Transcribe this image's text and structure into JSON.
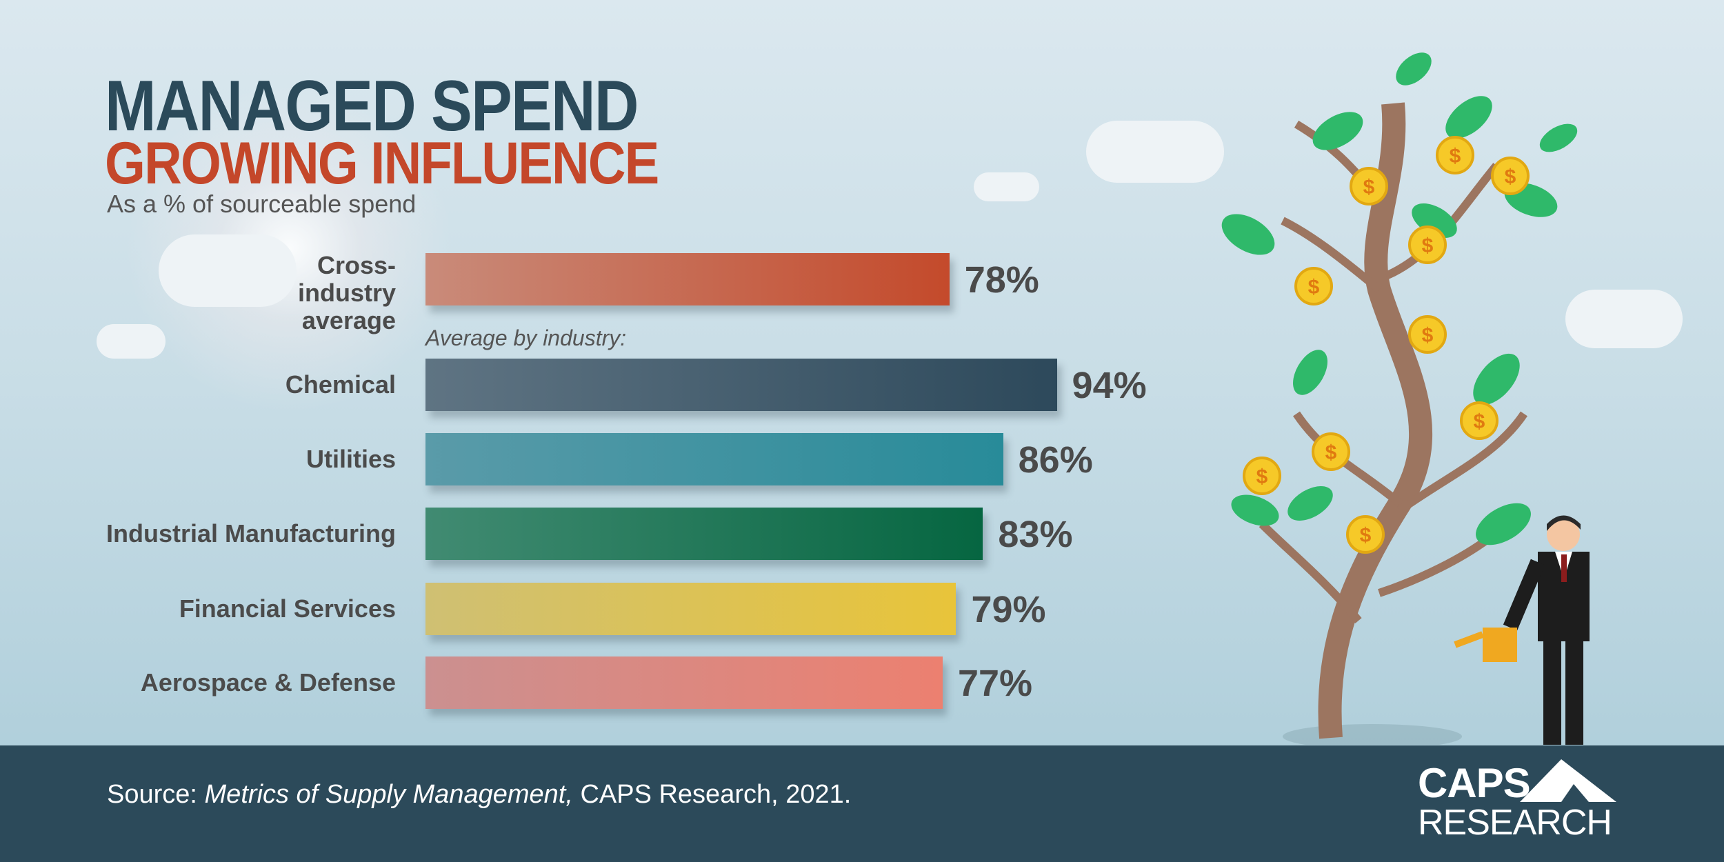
{
  "header": {
    "title_line1": "MANAGED SPEND",
    "title_line2": "GROWING INFLUENCE",
    "subtitle": "As a % of sourceable spend"
  },
  "chart_data": {
    "type": "bar",
    "orientation": "horizontal",
    "title": "MANAGED SPEND GROWING INFLUENCE",
    "subtitle": "As a % of sourceable spend",
    "group_note": "Average by industry:",
    "categories": [
      "Cross-industry average",
      "Chemical",
      "Utilities",
      "Industrial Manufacturing",
      "Financial Services",
      "Aerospace & Defense"
    ],
    "values": [
      78,
      94,
      86,
      83,
      79,
      77
    ],
    "value_labels": [
      "78%",
      "94%",
      "86%",
      "83%",
      "79%",
      "77%"
    ],
    "colors": [
      [
        "#c98b7a",
        "#c44a2b"
      ],
      [
        "#5f7483",
        "#2d495b"
      ],
      [
        "#5a9ba9",
        "#288b99"
      ],
      [
        "#418b72",
        "#066641"
      ],
      [
        "#cfc073",
        "#e8c43a"
      ],
      [
        "#cb9090",
        "#ec8070"
      ]
    ],
    "xlim": [
      0,
      100
    ],
    "grid": false,
    "legend": "none"
  },
  "footer": {
    "source_prefix": "Source: ",
    "source_title": "Metrics of Supply Management,",
    "source_suffix": " CAPS Research, 2021.",
    "logo_line1": "CAPS",
    "logo_line2": "RESEARCH"
  },
  "illustration": {
    "coin_symbol": "$"
  },
  "colors": {
    "title_dark": "#2b4a5a",
    "title_red": "#c4472a",
    "footer_bg": "#2c4a5a"
  }
}
